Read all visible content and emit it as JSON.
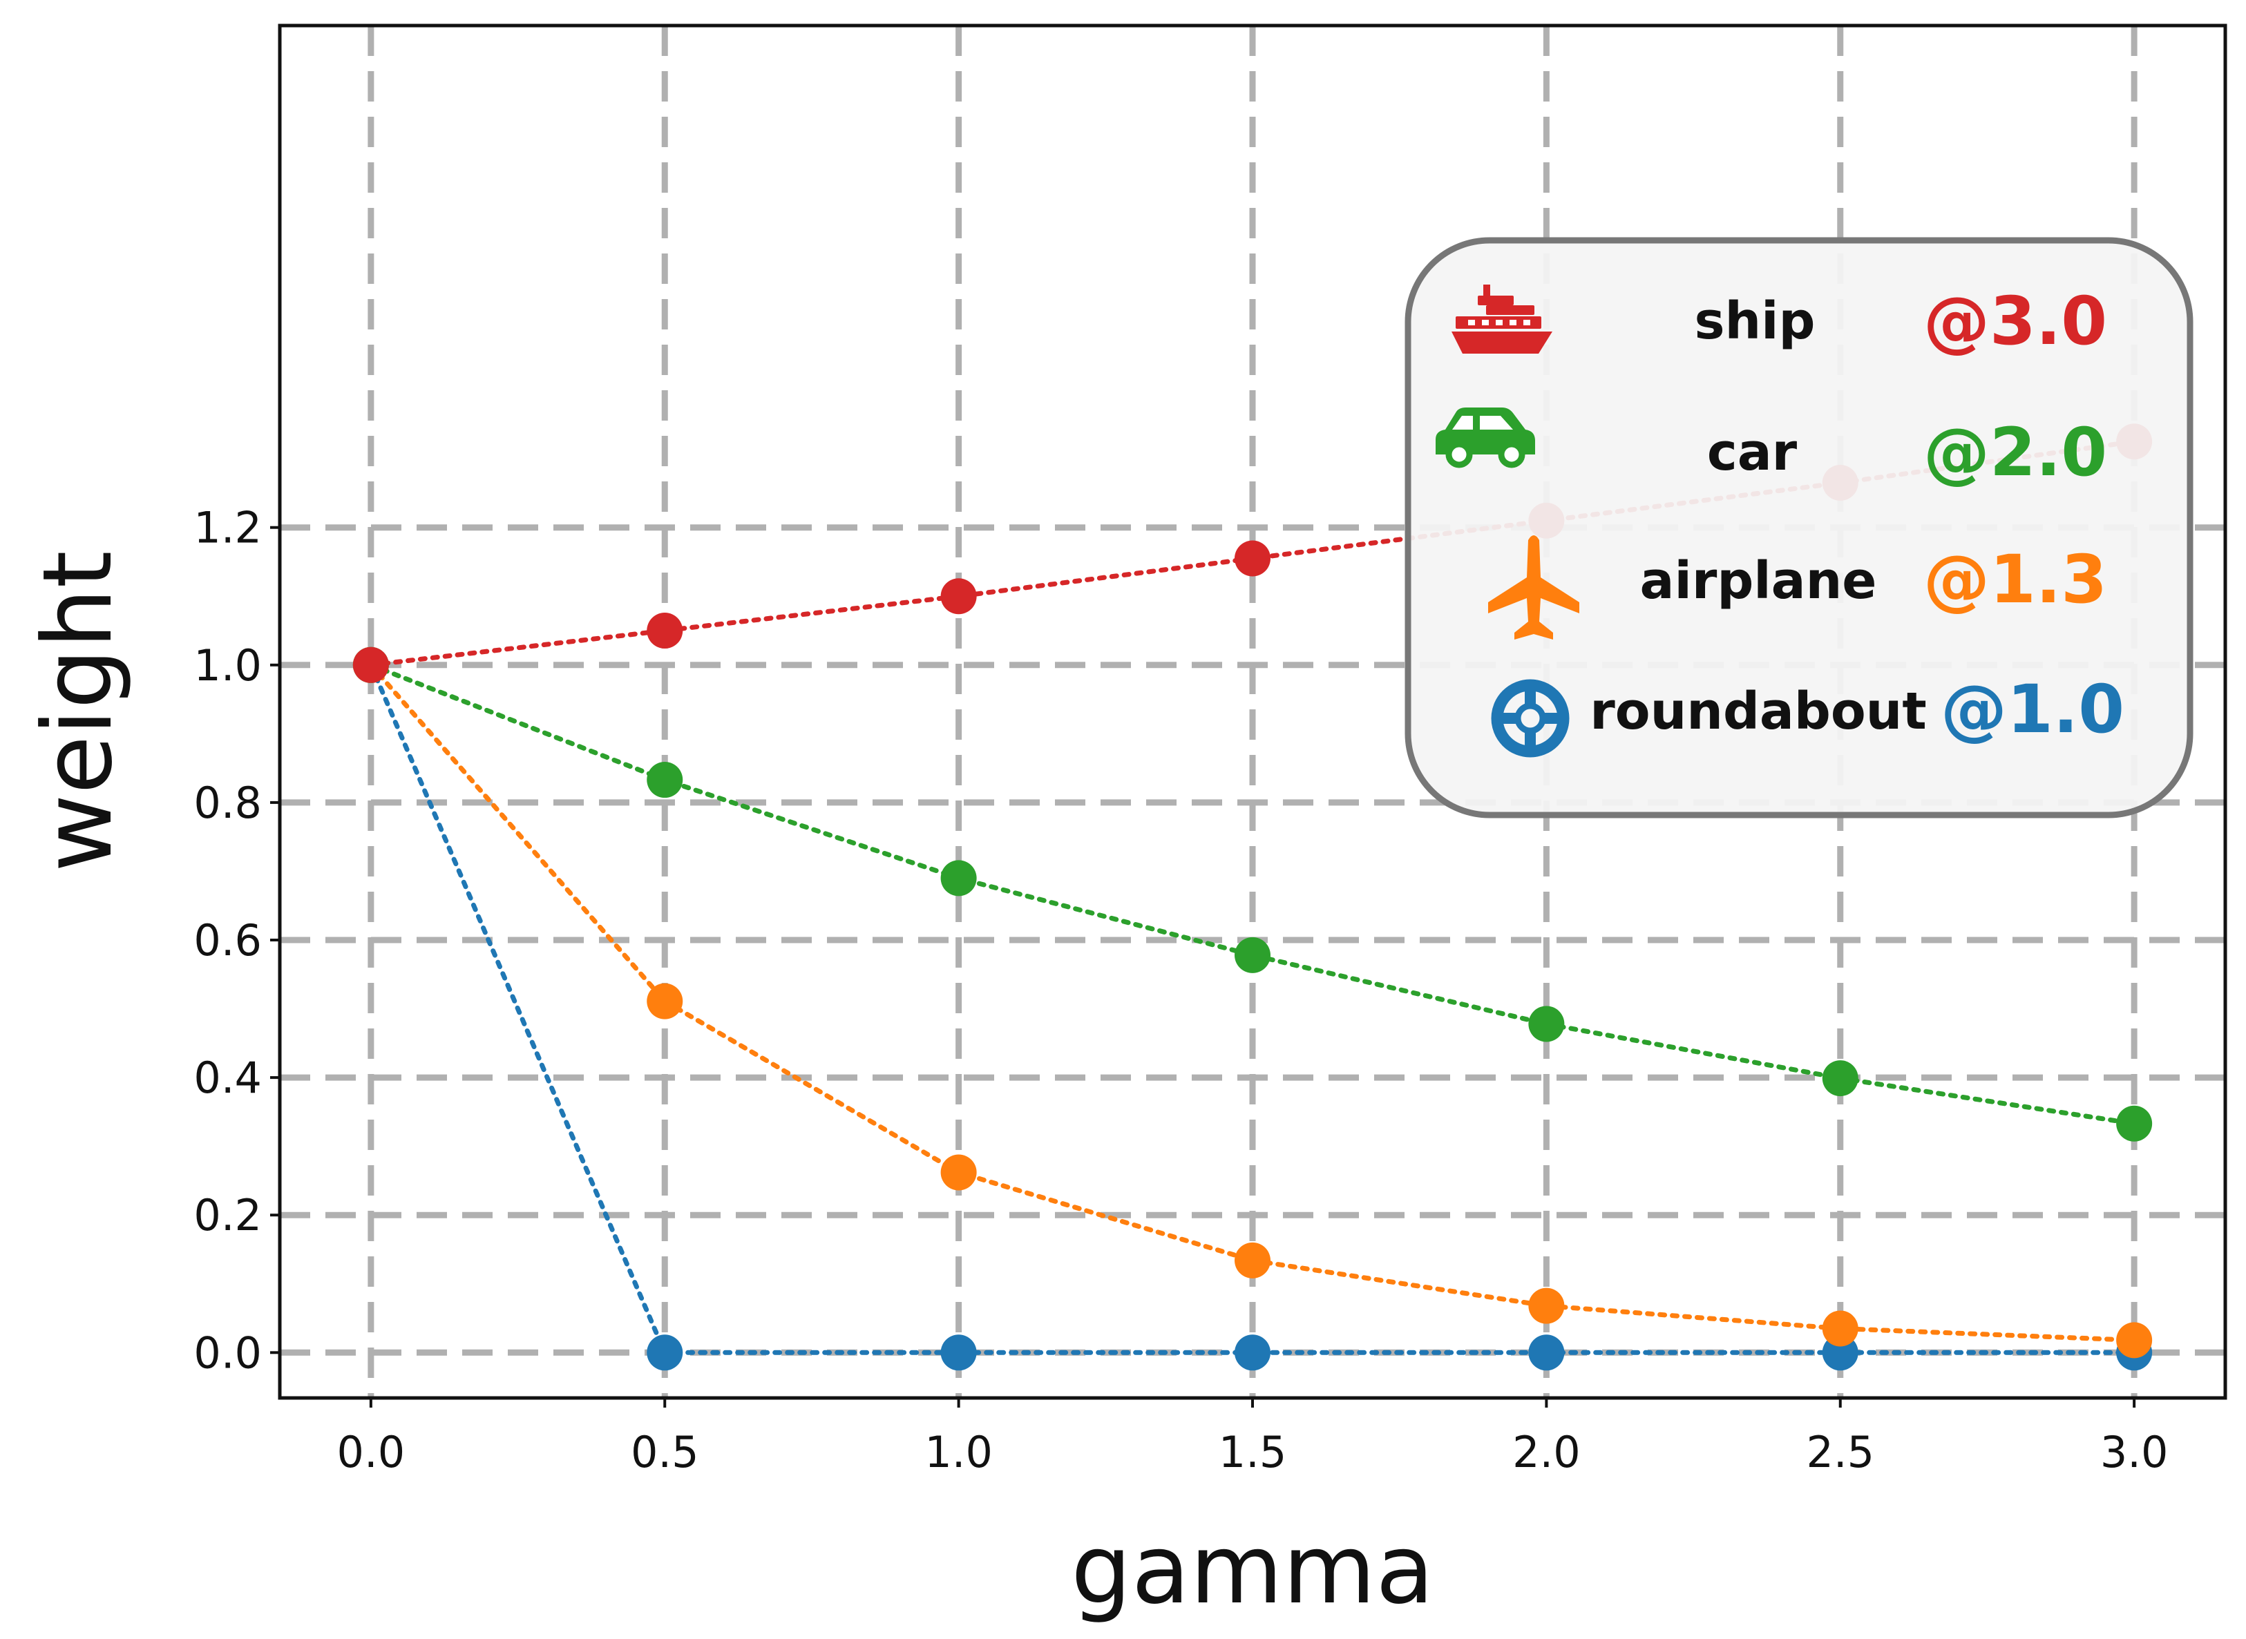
{
  "chart_data": {
    "type": "line",
    "xlabel": "gamma",
    "ylabel": "weight",
    "xlim": [
      -0.155,
      3.155
    ],
    "ylim": [
      -0.066,
      1.93
    ],
    "xticks": [
      "0.0",
      "0.5",
      "1.0",
      "1.5",
      "2.0",
      "2.5",
      "3.0"
    ],
    "yticks": [
      "0.0",
      "0.2",
      "0.4",
      "0.6",
      "0.8",
      "1.0",
      "1.2"
    ],
    "grid": true,
    "legend_position": "top-right",
    "x": [
      0.0,
      0.5,
      1.0,
      1.5,
      2.0,
      2.5,
      3.0
    ],
    "series": [
      {
        "name": "ship",
        "annotation": "@3.0",
        "color": "#d62728",
        "icon": "ship-icon",
        "values": [
          1.0,
          1.05,
          1.1,
          1.155,
          1.21,
          1.265,
          1.325
        ]
      },
      {
        "name": "car",
        "annotation": "@2.0",
        "color": "#2ca02c",
        "icon": "car-icon",
        "values": [
          1.0,
          0.833,
          0.69,
          0.578,
          0.478,
          0.399,
          0.333
        ]
      },
      {
        "name": "airplane",
        "annotation": "@1.3",
        "color": "#ff7f0e",
        "icon": "airplane-icon",
        "values": [
          1.0,
          0.511,
          0.262,
          0.134,
          0.068,
          0.035,
          0.018
        ]
      },
      {
        "name": "roundabout",
        "annotation": "@1.0",
        "color": "#1f77b4",
        "icon": "lifebuoy-icon",
        "values": [
          1.0,
          0.0,
          0.0,
          0.0,
          0.0,
          0.0,
          0.0
        ]
      }
    ]
  }
}
